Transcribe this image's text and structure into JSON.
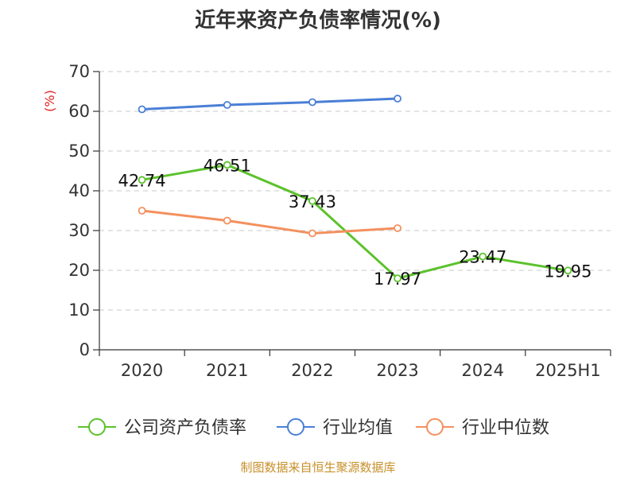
{
  "title": "近年来资产负债率情况(%)",
  "footer": "制图数据来自恒生聚源数据库",
  "chart_data": {
    "type": "line",
    "title": "近年来资产负债率情况(%)",
    "ylabel": "(%)",
    "xlabel": "",
    "ylim": [
      0,
      70
    ],
    "yticks": [
      0,
      10,
      20,
      30,
      40,
      50,
      60,
      70
    ],
    "grid": true,
    "legend_position": "bottom",
    "categories": [
      "2020",
      "2021",
      "2022",
      "2023",
      "2024",
      "2025H1"
    ],
    "series": [
      {
        "name": "公司资产负债率",
        "color": "#5cc22c",
        "values": [
          42.74,
          46.51,
          37.43,
          17.97,
          23.47,
          19.95
        ],
        "labels": [
          "42.74",
          "46.51",
          "37.43",
          "17.97",
          "23.47",
          "19.95"
        ]
      },
      {
        "name": "行业均值",
        "color": "#4a7fd6",
        "values": [
          60.5,
          61.6,
          62.3,
          63.2,
          null,
          null
        ]
      },
      {
        "name": "行业中位数",
        "color": "#f4905e",
        "values": [
          35.0,
          32.5,
          29.3,
          30.6,
          null,
          null
        ]
      }
    ]
  }
}
